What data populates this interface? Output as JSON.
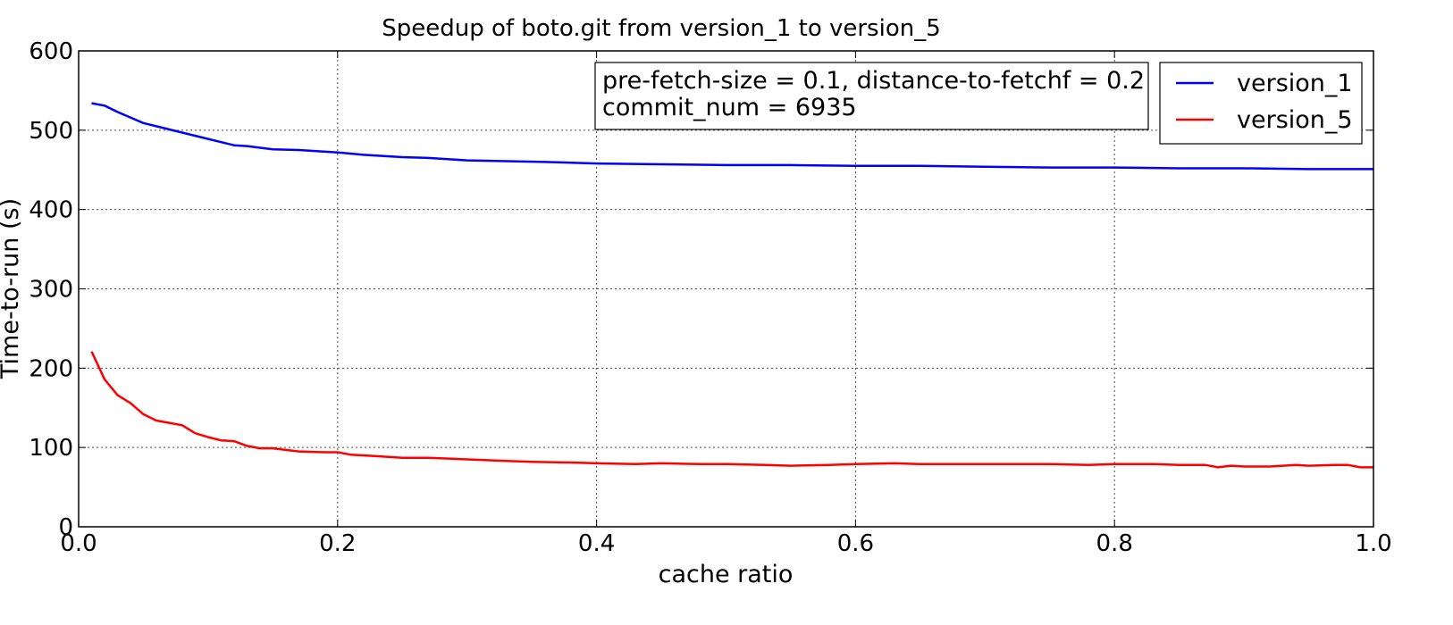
{
  "chart_data": {
    "type": "line",
    "title": "Speedup of boto.git from version_1 to version_5",
    "xlabel": "cache ratio",
    "ylabel": "Time-to-run (s)",
    "xlim": [
      0.0,
      1.0
    ],
    "ylim": [
      0,
      600
    ],
    "xticks": [
      0.0,
      0.2,
      0.4,
      0.6,
      0.8,
      1.0
    ],
    "xtick_labels": [
      "0.0",
      "0.2",
      "0.4",
      "0.6",
      "0.8",
      "1.0"
    ],
    "yticks": [
      0,
      100,
      200,
      300,
      400,
      500,
      600
    ],
    "ytick_labels": [
      "0",
      "100",
      "200",
      "300",
      "400",
      "500",
      "600"
    ],
    "grid": true,
    "legend_position": "top-right",
    "annotation": [
      "pre-fetch-size = 0.1, distance-to-fetchf = 0.2",
      "commit_num = 6935"
    ],
    "series": [
      {
        "name": "version_1",
        "color": "#0000ff",
        "points": [
          [
            0.01,
            534
          ],
          [
            0.02,
            531
          ],
          [
            0.03,
            523
          ],
          [
            0.04,
            516
          ],
          [
            0.05,
            509
          ],
          [
            0.06,
            505
          ],
          [
            0.08,
            497
          ],
          [
            0.1,
            489
          ],
          [
            0.12,
            481
          ],
          [
            0.13,
            480
          ],
          [
            0.15,
            476
          ],
          [
            0.17,
            475
          ],
          [
            0.2,
            472
          ],
          [
            0.22,
            469
          ],
          [
            0.25,
            466
          ],
          [
            0.27,
            465
          ],
          [
            0.3,
            462
          ],
          [
            0.33,
            461
          ],
          [
            0.36,
            460
          ],
          [
            0.4,
            458
          ],
          [
            0.45,
            457
          ],
          [
            0.5,
            456
          ],
          [
            0.55,
            456
          ],
          [
            0.6,
            455
          ],
          [
            0.65,
            455
          ],
          [
            0.7,
            454
          ],
          [
            0.75,
            453
          ],
          [
            0.8,
            453
          ],
          [
            0.85,
            452
          ],
          [
            0.9,
            452
          ],
          [
            0.95,
            451
          ],
          [
            1.0,
            451
          ]
        ]
      },
      {
        "name": "version_5",
        "color": "#ff0000",
        "points": [
          [
            0.01,
            221
          ],
          [
            0.02,
            186
          ],
          [
            0.03,
            166
          ],
          [
            0.04,
            156
          ],
          [
            0.05,
            142
          ],
          [
            0.06,
            134
          ],
          [
            0.07,
            131
          ],
          [
            0.08,
            128
          ],
          [
            0.09,
            118
          ],
          [
            0.1,
            113
          ],
          [
            0.11,
            109
          ],
          [
            0.12,
            108
          ],
          [
            0.13,
            102
          ],
          [
            0.14,
            99
          ],
          [
            0.15,
            99
          ],
          [
            0.17,
            95
          ],
          [
            0.19,
            94
          ],
          [
            0.2,
            94
          ],
          [
            0.21,
            91
          ],
          [
            0.23,
            89
          ],
          [
            0.25,
            87
          ],
          [
            0.27,
            87
          ],
          [
            0.3,
            85
          ],
          [
            0.33,
            83
          ],
          [
            0.35,
            82
          ],
          [
            0.38,
            81
          ],
          [
            0.4,
            80
          ],
          [
            0.43,
            79
          ],
          [
            0.45,
            80
          ],
          [
            0.48,
            79
          ],
          [
            0.5,
            79
          ],
          [
            0.53,
            78
          ],
          [
            0.55,
            77
          ],
          [
            0.58,
            78
          ],
          [
            0.6,
            79
          ],
          [
            0.63,
            80
          ],
          [
            0.65,
            79
          ],
          [
            0.68,
            79
          ],
          [
            0.7,
            79
          ],
          [
            0.73,
            79
          ],
          [
            0.75,
            79
          ],
          [
            0.78,
            78
          ],
          [
            0.8,
            79
          ],
          [
            0.83,
            79
          ],
          [
            0.85,
            78
          ],
          [
            0.87,
            78
          ],
          [
            0.88,
            75
          ],
          [
            0.89,
            77
          ],
          [
            0.9,
            76
          ],
          [
            0.92,
            76
          ],
          [
            0.94,
            78
          ],
          [
            0.95,
            77
          ],
          [
            0.97,
            78
          ],
          [
            0.98,
            78
          ],
          [
            0.99,
            75
          ],
          [
            1.0,
            75
          ]
        ]
      }
    ]
  }
}
